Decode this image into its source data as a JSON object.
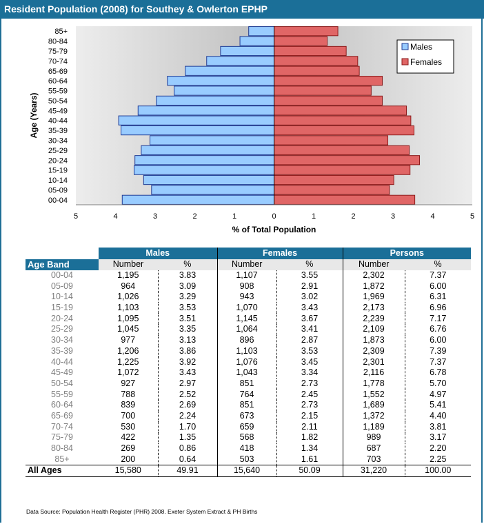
{
  "title": "Resident Population (2008) for Southey & Owlerton EPHP",
  "chart_data": {
    "type": "bar",
    "orientation": "horizontal-population-pyramid",
    "categories": [
      "00-04",
      "05-09",
      "10-14",
      "15-19",
      "20-24",
      "25-29",
      "30-34",
      "35-39",
      "40-44",
      "45-49",
      "50-54",
      "55-59",
      "60-64",
      "65-69",
      "70-74",
      "75-79",
      "80-84",
      "85+"
    ],
    "series": [
      {
        "name": "Males",
        "color": "#99ccff",
        "values": [
          3.83,
          3.09,
          3.29,
          3.53,
          3.51,
          3.35,
          3.13,
          3.86,
          3.92,
          3.43,
          2.97,
          2.52,
          2.69,
          2.24,
          1.7,
          1.35,
          0.86,
          0.64
        ]
      },
      {
        "name": "Females",
        "color": "#e06666",
        "values": [
          3.55,
          2.91,
          3.02,
          3.43,
          3.67,
          3.41,
          2.87,
          3.53,
          3.45,
          3.34,
          2.73,
          2.45,
          2.73,
          2.15,
          2.11,
          1.82,
          1.34,
          1.61
        ]
      }
    ],
    "xlabel": "% of Total Population",
    "ylabel": "Age (Years)",
    "xticks": [
      "5",
      "4",
      "3",
      "2",
      "1",
      "0",
      "1",
      "2",
      "3",
      "4",
      "5"
    ],
    "xlim": [
      -5,
      5
    ],
    "legend": "top-right",
    "plot_background": "#c0c0c0 gradient"
  },
  "table": {
    "group_headers": [
      "Males",
      "Females",
      "Persons"
    ],
    "age_band_label": "Age Band",
    "sub_headers": [
      "Number",
      "%",
      "Number",
      "%",
      "Number",
      "%"
    ],
    "rows": [
      {
        "age": "00-04",
        "m": "1,195",
        "mp": "3.83",
        "f": "1,107",
        "fp": "3.55",
        "p": "2,302",
        "pp": "7.37"
      },
      {
        "age": "05-09",
        "m": "964",
        "mp": "3.09",
        "f": "908",
        "fp": "2.91",
        "p": "1,872",
        "pp": "6.00"
      },
      {
        "age": "10-14",
        "m": "1,026",
        "mp": "3.29",
        "f": "943",
        "fp": "3.02",
        "p": "1,969",
        "pp": "6.31"
      },
      {
        "age": "15-19",
        "m": "1,103",
        "mp": "3.53",
        "f": "1,070",
        "fp": "3.43",
        "p": "2,173",
        "pp": "6.96"
      },
      {
        "age": "20-24",
        "m": "1,095",
        "mp": "3.51",
        "f": "1,145",
        "fp": "3.67",
        "p": "2,239",
        "pp": "7.17"
      },
      {
        "age": "25-29",
        "m": "1,045",
        "mp": "3.35",
        "f": "1,064",
        "fp": "3.41",
        "p": "2,109",
        "pp": "6.76"
      },
      {
        "age": "30-34",
        "m": "977",
        "mp": "3.13",
        "f": "896",
        "fp": "2.87",
        "p": "1,873",
        "pp": "6.00"
      },
      {
        "age": "35-39",
        "m": "1,206",
        "mp": "3.86",
        "f": "1,103",
        "fp": "3.53",
        "p": "2,309",
        "pp": "7.39"
      },
      {
        "age": "40-44",
        "m": "1,225",
        "mp": "3.92",
        "f": "1,076",
        "fp": "3.45",
        "p": "2,301",
        "pp": "7.37"
      },
      {
        "age": "45-49",
        "m": "1,072",
        "mp": "3.43",
        "f": "1,043",
        "fp": "3.34",
        "p": "2,116",
        "pp": "6.78"
      },
      {
        "age": "50-54",
        "m": "927",
        "mp": "2.97",
        "f": "851",
        "fp": "2.73",
        "p": "1,778",
        "pp": "5.70"
      },
      {
        "age": "55-59",
        "m": "788",
        "mp": "2.52",
        "f": "764",
        "fp": "2.45",
        "p": "1,552",
        "pp": "4.97"
      },
      {
        "age": "60-64",
        "m": "839",
        "mp": "2.69",
        "f": "851",
        "fp": "2.73",
        "p": "1,689",
        "pp": "5.41"
      },
      {
        "age": "65-69",
        "m": "700",
        "mp": "2.24",
        "f": "673",
        "fp": "2.15",
        "p": "1,372",
        "pp": "4.40"
      },
      {
        "age": "70-74",
        "m": "530",
        "mp": "1.70",
        "f": "659",
        "fp": "2.11",
        "p": "1,189",
        "pp": "3.81"
      },
      {
        "age": "75-79",
        "m": "422",
        "mp": "1.35",
        "f": "568",
        "fp": "1.82",
        "p": "989",
        "pp": "3.17"
      },
      {
        "age": "80-84",
        "m": "269",
        "mp": "0.86",
        "f": "418",
        "fp": "1.34",
        "p": "687",
        "pp": "2.20"
      },
      {
        "age": "85+",
        "m": "200",
        "mp": "0.64",
        "f": "503",
        "fp": "1.61",
        "p": "703",
        "pp": "2.25"
      }
    ],
    "total": {
      "age": "All Ages",
      "m": "15,580",
      "mp": "49.91",
      "f": "15,640",
      "fp": "50.09",
      "p": "31,220",
      "pp": "100.00"
    }
  },
  "source": "Data Source: Population Health Register (PHR) 2008. Exeter System Extract & PH Births"
}
